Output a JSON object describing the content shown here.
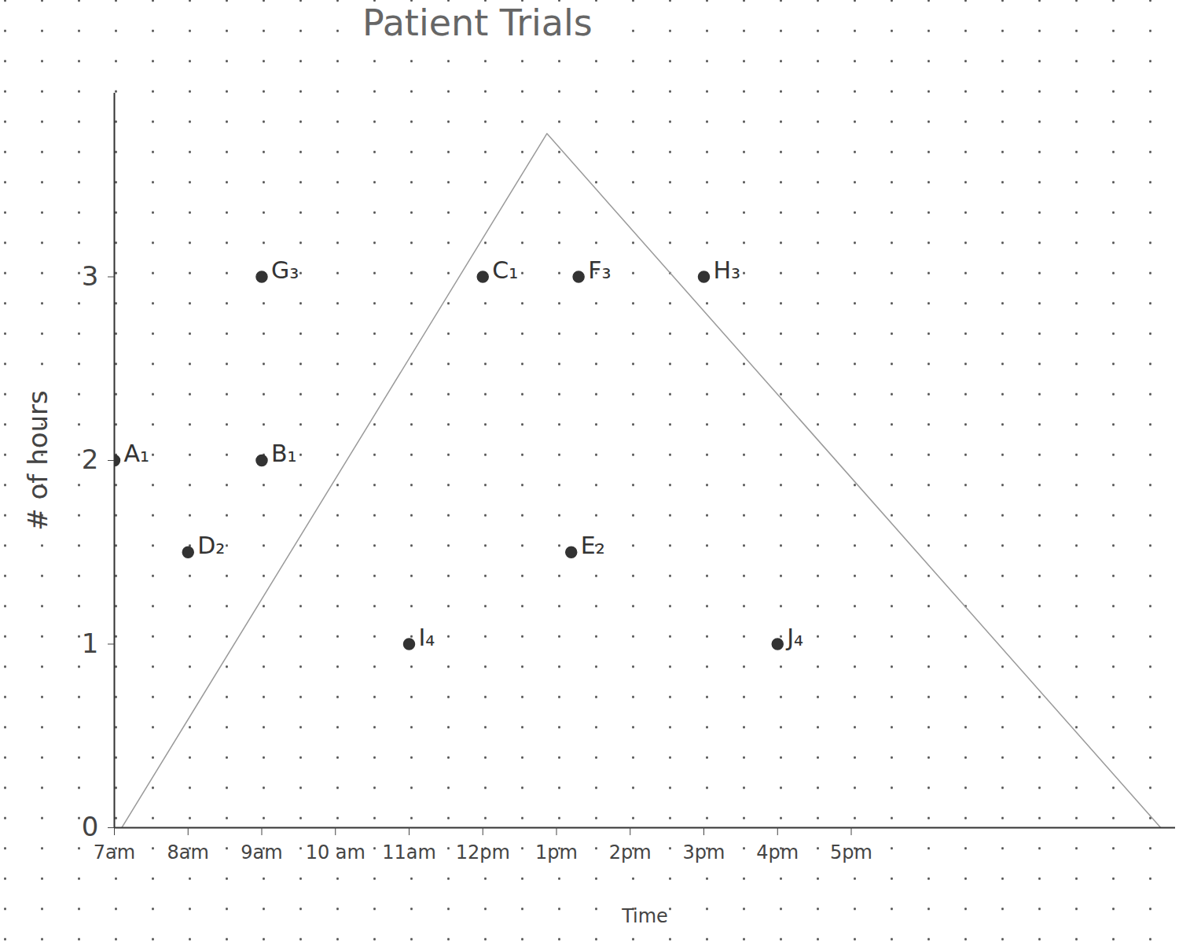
{
  "chart_data": {
    "type": "scatter",
    "title": "Patient Trials",
    "x_label": "Time",
    "y_label": "# of hours",
    "xlim": [
      7,
      21.4
    ],
    "ylim": [
      0,
      4
    ],
    "xticks": [
      {
        "value": 7,
        "label": "7am"
      },
      {
        "value": 8,
        "label": "8am"
      },
      {
        "value": 9,
        "label": "9am"
      },
      {
        "value": 10,
        "label": "10 am"
      },
      {
        "value": 11,
        "label": "11am"
      },
      {
        "value": 12,
        "label": "12pm"
      },
      {
        "value": 13,
        "label": "1pm"
      },
      {
        "value": 14,
        "label": "2pm"
      },
      {
        "value": 15,
        "label": "3pm"
      },
      {
        "value": 16,
        "label": "4pm"
      },
      {
        "value": 17,
        "label": "5pm"
      }
    ],
    "yticks": [
      0,
      1,
      2,
      3
    ],
    "series": [
      {
        "type": "scatter",
        "color": "#333333",
        "x": [
          7,
          9,
          12,
          8,
          13.2,
          13.3,
          9,
          15,
          11,
          16
        ],
        "values": [
          2,
          2,
          3,
          1.5,
          1.5,
          3,
          3,
          3,
          1,
          1
        ],
        "labels": [
          "A₁",
          "B₁",
          "C₁",
          "D₂",
          "E₂",
          "F₃",
          "G₃",
          "H₃",
          "I₄",
          "J₄"
        ]
      },
      {
        "type": "line",
        "color": "#9a9a9a",
        "x": [
          7.1,
          12.87,
          21.2
        ],
        "values": [
          0,
          3.78,
          0
        ]
      }
    ]
  }
}
